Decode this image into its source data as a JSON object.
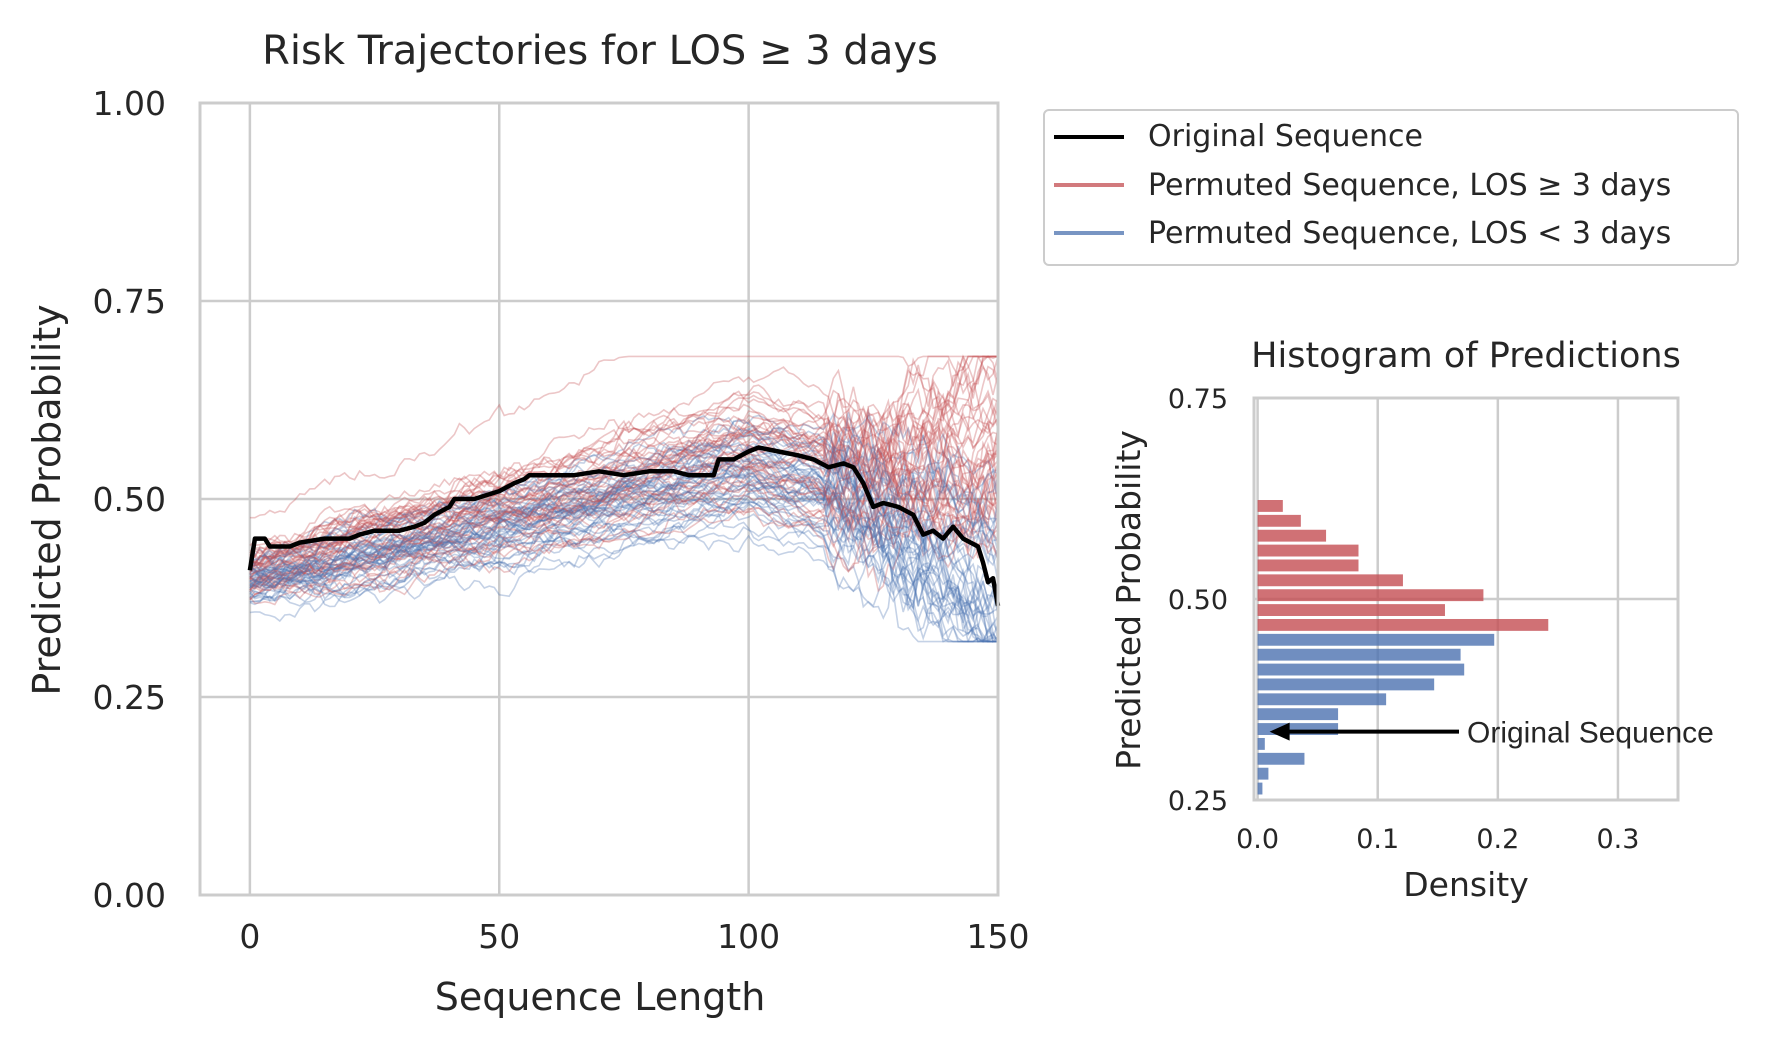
{
  "chart_data": [
    {
      "type": "line",
      "title": "Risk Trajectories for LOS ≥ 3 days",
      "xlabel": "Sequence Length",
      "ylabel": "Predicted Probability",
      "xlim": [
        -10,
        150
      ],
      "ylim": [
        0,
        1
      ],
      "xticks": [
        0,
        50,
        100,
        150
      ],
      "yticks": [
        0.0,
        0.25,
        0.5,
        0.75,
        1.0
      ],
      "ytick_labels": [
        "0.00",
        "0.25",
        "0.50",
        "0.75",
        "1.00"
      ],
      "xtick_labels": [
        "0",
        "50",
        "100",
        "150"
      ],
      "grid": true,
      "legend": {
        "placement": "outside-top-right",
        "entries": [
          {
            "label": "Original Sequence",
            "color": "#000000"
          },
          {
            "label": "Permuted Sequence, LOS ≥ 3 days",
            "color": "#c44e52"
          },
          {
            "label": "Permuted Sequence, LOS < 3 days",
            "color": "#4c72b0"
          }
        ]
      },
      "series": [
        {
          "name": "Original Sequence",
          "color": "#000000",
          "points": [
            [
              0,
              0.41
            ],
            [
              1,
              0.45
            ],
            [
              3,
              0.45
            ],
            [
              4,
              0.44
            ],
            [
              8,
              0.44
            ],
            [
              10,
              0.445
            ],
            [
              15,
              0.45
            ],
            [
              20,
              0.45
            ],
            [
              22,
              0.455
            ],
            [
              25,
              0.46
            ],
            [
              30,
              0.46
            ],
            [
              33,
              0.465
            ],
            [
              35,
              0.47
            ],
            [
              37,
              0.48
            ],
            [
              40,
              0.49
            ],
            [
              41,
              0.5
            ],
            [
              45,
              0.5
            ],
            [
              50,
              0.51
            ],
            [
              53,
              0.52
            ],
            [
              55,
              0.525
            ],
            [
              56,
              0.53
            ],
            [
              60,
              0.53
            ],
            [
              65,
              0.53
            ],
            [
              70,
              0.535
            ],
            [
              75,
              0.53
            ],
            [
              80,
              0.535
            ],
            [
              85,
              0.535
            ],
            [
              88,
              0.53
            ],
            [
              93,
              0.53
            ],
            [
              94,
              0.55
            ],
            [
              97,
              0.55
            ],
            [
              100,
              0.56
            ],
            [
              102,
              0.565
            ],
            [
              106,
              0.56
            ],
            [
              110,
              0.555
            ],
            [
              113,
              0.55
            ],
            [
              116,
              0.54
            ],
            [
              119,
              0.545
            ],
            [
              121,
              0.54
            ],
            [
              123,
              0.52
            ],
            [
              125,
              0.49
            ],
            [
              127,
              0.495
            ],
            [
              130,
              0.49
            ],
            [
              133,
              0.48
            ],
            [
              135,
              0.455
            ],
            [
              137,
              0.46
            ],
            [
              139,
              0.45
            ],
            [
              141,
              0.465
            ],
            [
              143,
              0.45
            ],
            [
              146,
              0.44
            ],
            [
              147,
              0.42
            ],
            [
              148,
              0.395
            ],
            [
              149,
              0.4
            ],
            [
              150,
              0.365
            ]
          ]
        }
      ],
      "permuted_high_color": "#c44e52",
      "permuted_low_color": "#4c72b0"
    },
    {
      "type": "bar",
      "orientation": "horizontal",
      "title": "Histogram of Predictions",
      "xlabel": "Density",
      "ylabel": "Predicted Probability",
      "xlim": [
        -0.003,
        0.35
      ],
      "ylim": [
        0.25,
        0.75
      ],
      "xticks": [
        0.0,
        0.1,
        0.2,
        0.3
      ],
      "xtick_labels": [
        "0.0",
        "0.1",
        "0.2",
        "0.3"
      ],
      "yticks": [
        0.25,
        0.5,
        0.75
      ],
      "ytick_labels": [
        "0.25",
        "0.50",
        "0.75"
      ],
      "grid": true,
      "bin_width": 0.0185,
      "bars": [
        {
          "bin": 0.255,
          "density": 0.004,
          "color": "#4c72b0"
        },
        {
          "bin": 0.2735,
          "density": 0.009,
          "color": "#4c72b0"
        },
        {
          "bin": 0.292,
          "density": 0.039,
          "color": "#4c72b0"
        },
        {
          "bin": 0.3105,
          "density": 0.006,
          "color": "#4c72b0"
        },
        {
          "bin": 0.329,
          "density": 0.067,
          "color": "#4c72b0"
        },
        {
          "bin": 0.3475,
          "density": 0.067,
          "color": "#4c72b0"
        },
        {
          "bin": 0.366,
          "density": 0.107,
          "color": "#4c72b0"
        },
        {
          "bin": 0.3845,
          "density": 0.147,
          "color": "#4c72b0"
        },
        {
          "bin": 0.403,
          "density": 0.172,
          "color": "#4c72b0"
        },
        {
          "bin": 0.4215,
          "density": 0.169,
          "color": "#4c72b0"
        },
        {
          "bin": 0.44,
          "density": 0.197,
          "color": "#4c72b0"
        },
        {
          "bin": 0.4585,
          "density": 0.242,
          "color": "#c44e52"
        },
        {
          "bin": 0.477,
          "density": 0.156,
          "color": "#c44e52"
        },
        {
          "bin": 0.4955,
          "density": 0.188,
          "color": "#c44e52"
        },
        {
          "bin": 0.514,
          "density": 0.121,
          "color": "#c44e52"
        },
        {
          "bin": 0.5325,
          "density": 0.084,
          "color": "#c44e52"
        },
        {
          "bin": 0.551,
          "density": 0.084,
          "color": "#c44e52"
        },
        {
          "bin": 0.5695,
          "density": 0.057,
          "color": "#c44e52"
        },
        {
          "bin": 0.588,
          "density": 0.036,
          "color": "#c44e52"
        },
        {
          "bin": 0.6065,
          "density": 0.021,
          "color": "#c44e52"
        }
      ],
      "annotation": {
        "text": "Original Sequence",
        "target_density": 0.01,
        "target_probability": 0.335
      }
    }
  ]
}
